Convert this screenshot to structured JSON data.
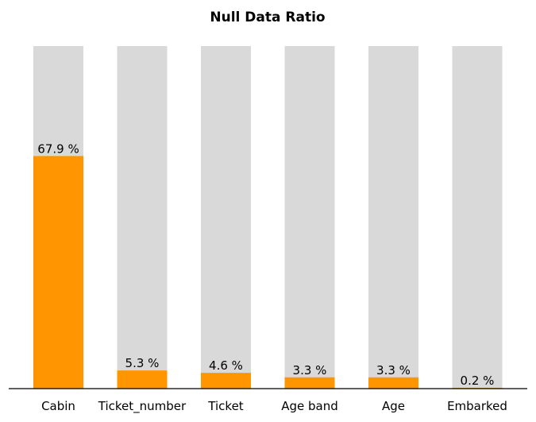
{
  "chart_data": {
    "type": "bar",
    "title": "Null Data Ratio",
    "xlabel": "",
    "ylabel": "",
    "categories": [
      "Cabin",
      "Ticket_number",
      "Ticket",
      "Age band",
      "Age",
      "Embarked"
    ],
    "values": [
      67.9,
      5.3,
      4.6,
      3.3,
      3.3,
      0.2
    ],
    "data_labels": [
      "67.9 %",
      "5.3 %",
      "4.6 %",
      "3.3 %",
      "3.3 %",
      "0.2 %"
    ],
    "ylim": [
      0,
      100
    ],
    "background_bar_value": 100,
    "grid": false,
    "legend": "none",
    "colors": {
      "bar": "#ff9500",
      "background_bar": "#d9d9d9",
      "axis": "#000000"
    }
  }
}
